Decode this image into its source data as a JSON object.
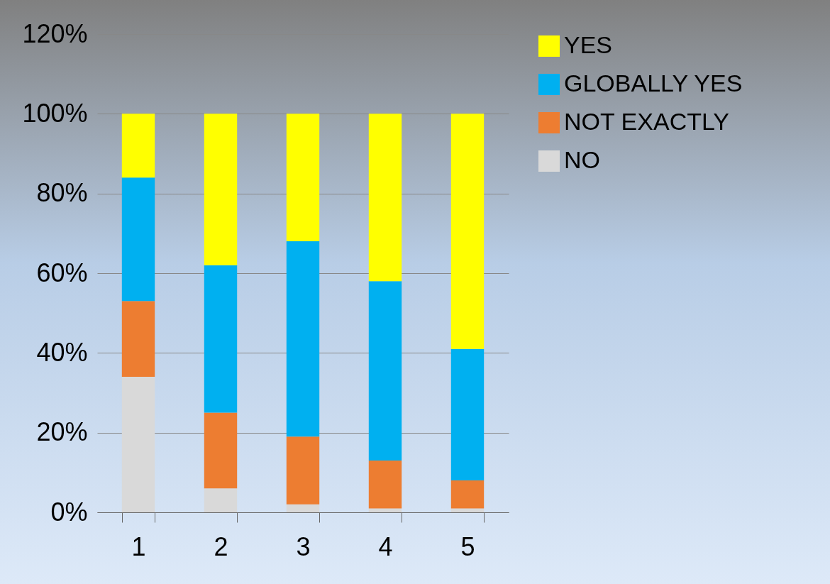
{
  "chart_data": {
    "type": "bar",
    "stacked": true,
    "categories": [
      "1",
      "2",
      "3",
      "4",
      "5"
    ],
    "series": [
      {
        "name": "NO",
        "color": "#d9d9d9",
        "values": [
          34,
          6,
          2,
          1,
          1
        ]
      },
      {
        "name": "NOT EXACTLY",
        "color": "#ed7d31",
        "values": [
          19,
          19,
          17,
          12,
          7
        ]
      },
      {
        "name": "GLOBALLY YES",
        "color": "#00b0f0",
        "values": [
          31,
          37,
          49,
          45,
          33
        ]
      },
      {
        "name": "YES",
        "color": "#ffff00",
        "values": [
          16,
          38,
          32,
          42,
          59
        ]
      }
    ],
    "ylim": [
      0,
      120
    ],
    "yticks": [
      {
        "value": 0,
        "label": "0%"
      },
      {
        "value": 20,
        "label": "20%"
      },
      {
        "value": 40,
        "label": "40%"
      },
      {
        "value": 60,
        "label": "60%"
      },
      {
        "value": 80,
        "label": "80%"
      },
      {
        "value": 100,
        "label": "100%"
      },
      {
        "value": 120,
        "label": "120%"
      }
    ],
    "grid": "y",
    "legend": "right"
  }
}
